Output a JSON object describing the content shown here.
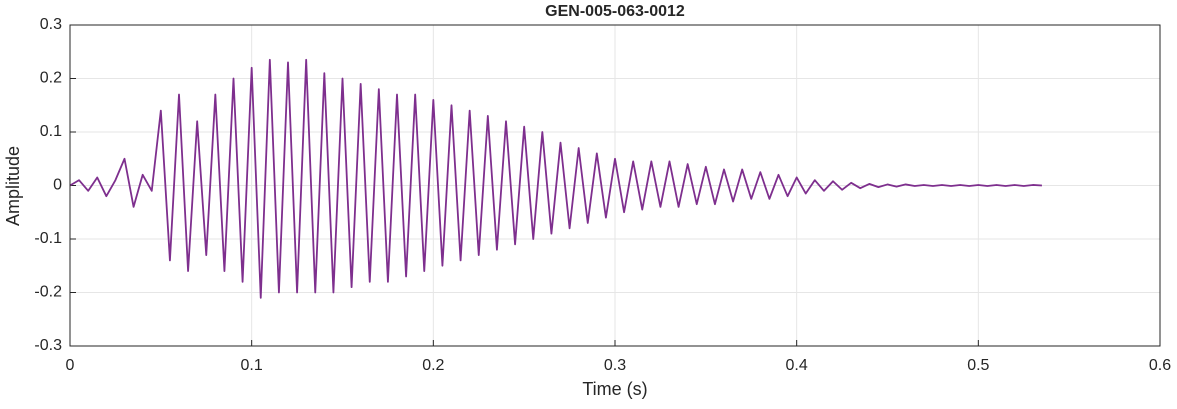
{
  "chart_data": {
    "type": "line",
    "title": "GEN-005-063-0012",
    "x_label": "Time (s)",
    "y_label": "Amplitude",
    "xlim": [
      0,
      0.6
    ],
    "xticks": [
      0,
      0.1,
      0.2,
      0.3,
      0.4,
      0.5,
      0.6
    ],
    "ylim": [
      -0.3,
      0.3
    ],
    "yticks": [
      -0.3,
      -0.2,
      -0.1,
      0,
      0.1,
      0.2,
      0.3
    ],
    "grid": true,
    "x": [
      0,
      0.005,
      0.01,
      0.015,
      0.02,
      0.025,
      0.03,
      0.035,
      0.04,
      0.045,
      0.05,
      0.055,
      0.06,
      0.065,
      0.07,
      0.075,
      0.08,
      0.085,
      0.09,
      0.095,
      0.1,
      0.105,
      0.11,
      0.115,
      0.12,
      0.125,
      0.13,
      0.135,
      0.14,
      0.145,
      0.15,
      0.155,
      0.16,
      0.165,
      0.17,
      0.175,
      0.18,
      0.185,
      0.19,
      0.195,
      0.2,
      0.205,
      0.21,
      0.215,
      0.22,
      0.225,
      0.23,
      0.235,
      0.24,
      0.245,
      0.25,
      0.255,
      0.26,
      0.265,
      0.27,
      0.275,
      0.28,
      0.285,
      0.29,
      0.295,
      0.3,
      0.305,
      0.31,
      0.315,
      0.32,
      0.325,
      0.33,
      0.335,
      0.34,
      0.345,
      0.35,
      0.355,
      0.36,
      0.365,
      0.37,
      0.375,
      0.38,
      0.385,
      0.39,
      0.395,
      0.4,
      0.405,
      0.41,
      0.415,
      0.42,
      0.425,
      0.43,
      0.435,
      0.44,
      0.445,
      0.45,
      0.455,
      0.46,
      0.465,
      0.47,
      0.475,
      0.48,
      0.485,
      0.49,
      0.495,
      0.5,
      0.505,
      0.51,
      0.515,
      0.52,
      0.525,
      0.53,
      0.535
    ],
    "series": [
      {
        "color": "#7e2f8e",
        "values": [
          0,
          0.01,
          -0.01,
          0.015,
          -0.02,
          0.01,
          0.05,
          -0.04,
          0.02,
          -0.01,
          0.14,
          -0.14,
          0.17,
          -0.16,
          0.12,
          -0.13,
          0.17,
          -0.16,
          0.2,
          -0.18,
          0.22,
          -0.21,
          0.235,
          -0.2,
          0.23,
          -0.2,
          0.235,
          -0.2,
          0.21,
          -0.2,
          0.2,
          -0.19,
          0.19,
          -0.18,
          0.18,
          -0.18,
          0.17,
          -0.17,
          0.17,
          -0.16,
          0.16,
          -0.15,
          0.15,
          -0.14,
          0.14,
          -0.13,
          0.13,
          -0.12,
          0.12,
          -0.11,
          0.11,
          -0.1,
          0.1,
          -0.09,
          0.08,
          -0.08,
          0.07,
          -0.07,
          0.06,
          -0.06,
          0.05,
          -0.05,
          0.045,
          -0.045,
          0.045,
          -0.04,
          0.045,
          -0.04,
          0.04,
          -0.035,
          0.035,
          -0.035,
          0.03,
          -0.03,
          0.03,
          -0.025,
          0.025,
          -0.025,
          0.02,
          -0.02,
          0.015,
          -0.015,
          0.01,
          -0.01,
          0.008,
          -0.008,
          0.005,
          -0.005,
          0.003,
          -0.003,
          0.002,
          -0.002,
          0.002,
          -0.001,
          0.001,
          -0.001,
          0.001,
          -0.001,
          0.001,
          -0.001,
          0.001,
          -0.001,
          0.001,
          -0.001,
          0.001,
          -0.001,
          0.001,
          0
        ]
      }
    ]
  }
}
